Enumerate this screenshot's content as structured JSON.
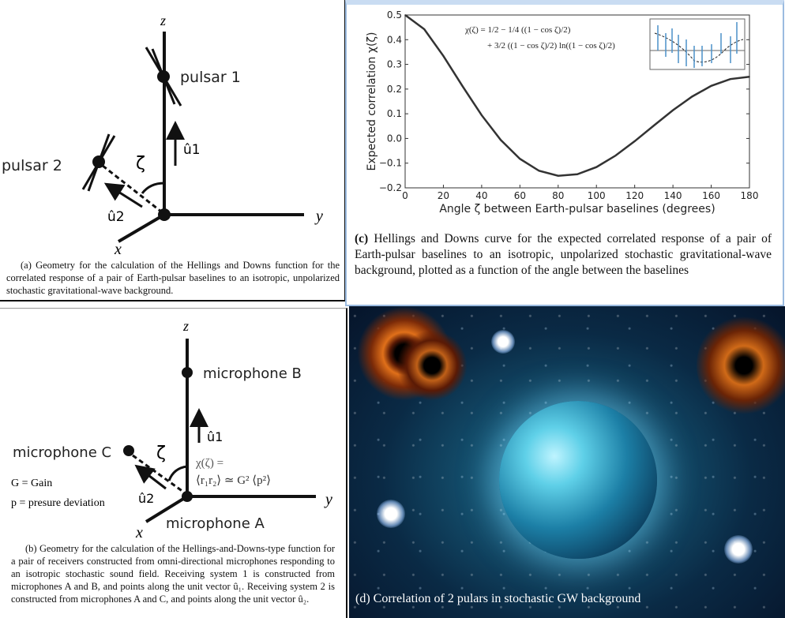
{
  "panel_a": {
    "axis_z": "z",
    "axis_y": "y",
    "axis_x": "x",
    "pulsar1": "pulsar 1",
    "pulsar2": "pulsar 2",
    "u1": "û1",
    "u2": "û2",
    "zeta": "ζ",
    "caption_tag": "(a)",
    "caption": "Geometry for the calculation of the Hellings and Downs function for the correlated response of a pair of Earth-pulsar baselines to an isotropic, unpolarized stochastic gravitational-wave background."
  },
  "panel_b": {
    "axis_z": "z",
    "axis_y": "y",
    "axis_x": "x",
    "mic_a": "microphone A",
    "mic_b": "microphone B",
    "mic_c": "microphone C",
    "u1": "û1",
    "u2": "û2",
    "zeta": "ζ",
    "formula_1": "χ(ζ) =",
    "formula_2": "⟨r₁r₂⟩ ≃ G² ⟨p²⟩",
    "legend_g": "G = Gain",
    "legend_p": "p = presure deviation",
    "caption_tag": "(b)",
    "caption": "Geometry for the calculation of the Hellings-and-Downs-type function for a pair of receivers constructed from omni-directional microphones responding to an isotropic stochastic sound field. Receiving system 1 is constructed from microphones A and B, and points along the unit vector û₁. Receiving system 2 is constructed from microphones A and C, and points along the unit vector û₂."
  },
  "panel_c": {
    "caption_tag": "(c)",
    "caption": "Hellings and Downs curve for the expected correlated response of a pair of Earth-pulsar baselines to an isotropic, unpolarized stochastic gravitational-wave background, plotted as a function of the angle between the baselines",
    "formula_line1": "χ(ζ) = 1/2 − 1/4 ((1 − cos ζ)/2)",
    "formula_line2": "+ 3/2 ((1 − cos ζ)/2) ln((1 − cos ζ)/2)"
  },
  "panel_d": {
    "caption": "(d) Correlation of 2 pulars in stochastic GW background"
  },
  "chart_data": {
    "type": "line",
    "title": "",
    "xlabel": "Angle ζ between Earth-pulsar baselines (degrees)",
    "ylabel": "Expected correlation χ(ζ)",
    "xlim": [
      0,
      180
    ],
    "ylim": [
      -0.2,
      0.5
    ],
    "xticks": [
      "0",
      "20",
      "40",
      "60",
      "80",
      "100",
      "120",
      "140",
      "160",
      "180"
    ],
    "yticks": [
      "−0.2",
      "−0.1",
      "0.0",
      "0.1",
      "0.2",
      "0.3",
      "0.4",
      "0.5"
    ],
    "x": [
      0,
      10,
      20,
      30,
      40,
      50,
      60,
      70,
      80,
      90,
      100,
      110,
      120,
      130,
      140,
      150,
      160,
      170,
      180
    ],
    "y": [
      0.5,
      0.4425,
      0.334,
      0.2116,
      0.0942,
      -0.0062,
      -0.0824,
      -0.1309,
      -0.1511,
      -0.1449,
      -0.1159,
      -0.0694,
      -0.0112,
      0.0522,
      0.1144,
      0.1696,
      0.2129,
      0.2405,
      0.25
    ],
    "line_color": "#333333"
  }
}
